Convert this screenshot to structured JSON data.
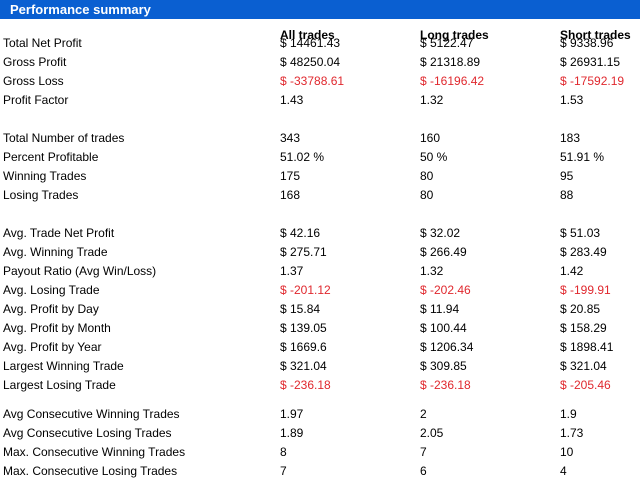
{
  "header": {
    "title": "Performance summary"
  },
  "columns": [
    "All trades",
    "Long trades",
    "Short trades"
  ],
  "rows": [
    {
      "label": "Total Net Profit",
      "values": [
        "$ 14461.43",
        "$ 5122.47",
        "$ 9338.96"
      ],
      "negative": false
    },
    {
      "label": "Gross Profit",
      "values": [
        "$ 48250.04",
        "$ 21318.89",
        "$ 26931.15"
      ],
      "negative": false
    },
    {
      "label": "Gross Loss",
      "values": [
        "$ -33788.61",
        "$ -16196.42",
        "$ -17592.19"
      ],
      "negative": true
    },
    {
      "label": "Profit Factor",
      "values": [
        "1.43",
        "1.32",
        "1.53"
      ],
      "negative": false
    },
    {
      "label": "Total Number of trades",
      "values": [
        "343",
        "160",
        "183"
      ],
      "negative": false
    },
    {
      "label": "Percent Profitable",
      "values": [
        "51.02 %",
        "50 %",
        "51.91 %"
      ],
      "negative": false
    },
    {
      "label": "Winning Trades",
      "values": [
        "175",
        "80",
        "95"
      ],
      "negative": false
    },
    {
      "label": "Losing Trades",
      "values": [
        "168",
        "80",
        "88"
      ],
      "negative": false
    },
    {
      "label": "Avg. Trade Net Profit",
      "values": [
        "$ 42.16",
        "$ 32.02",
        "$ 51.03"
      ],
      "negative": false
    },
    {
      "label": "Avg. Winning Trade",
      "values": [
        "$ 275.71",
        "$ 266.49",
        "$ 283.49"
      ],
      "negative": false
    },
    {
      "label": "Payout Ratio (Avg Win/Loss)",
      "values": [
        "1.37",
        "1.32",
        "1.42"
      ],
      "negative": false
    },
    {
      "label": "Avg. Losing Trade",
      "values": [
        "$ -201.12",
        "$ -202.46",
        "$ -199.91"
      ],
      "negative": true
    },
    {
      "label": "Avg. Profit by Day",
      "values": [
        "$ 15.84",
        "$ 11.94",
        "$ 20.85"
      ],
      "negative": false
    },
    {
      "label": "Avg. Profit by Month",
      "values": [
        "$ 139.05",
        "$ 100.44",
        "$ 158.29"
      ],
      "negative": false
    },
    {
      "label": "Avg. Profit by Year",
      "values": [
        "$ 1669.6",
        "$ 1206.34",
        "$ 1898.41"
      ],
      "negative": false
    },
    {
      "label": "Largest Winning Trade",
      "values": [
        "$ 321.04",
        "$ 309.85",
        "$ 321.04"
      ],
      "negative": false
    },
    {
      "label": "Largest Losing Trade",
      "values": [
        "$ -236.18",
        "$ -236.18",
        "$ -205.46"
      ],
      "negative": true
    },
    {
      "label": "Avg Consecutive Winning Trades",
      "values": [
        "1.97",
        "2",
        "1.9"
      ],
      "negative": false
    },
    {
      "label": "Avg Consecutive Losing Trades",
      "values": [
        "1.89",
        "2.05",
        "1.73"
      ],
      "negative": false
    },
    {
      "label": "Max. Consecutive Winning Trades",
      "values": [
        "8",
        "7",
        "10"
      ],
      "negative": false
    },
    {
      "label": "Max. Consecutive Losing Trades",
      "values": [
        "7",
        "6",
        "4"
      ],
      "negative": false
    }
  ],
  "colors": {
    "header_bg": "#0a5fd1",
    "negative": "#e0282e"
  }
}
